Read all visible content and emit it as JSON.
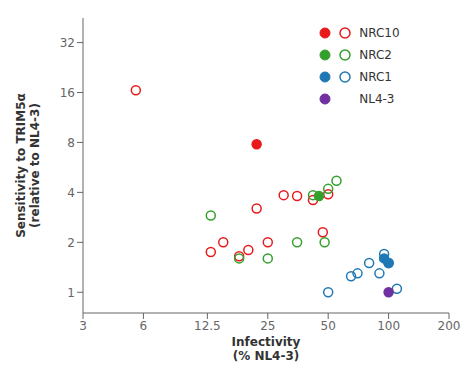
{
  "chart_data": {
    "type": "scatter",
    "xlabel": "Infectivity\n(% NL4-3)",
    "ylabel": "Sensitivity to TRIM5α\n(relative to NL4-3)",
    "log": true,
    "xlim": [
      3,
      200
    ],
    "ylim": [
      0.75,
      45
    ],
    "xticks": [
      3,
      6,
      12.5,
      25,
      50,
      100,
      200
    ],
    "yticks": [
      1,
      2,
      4,
      8,
      16,
      32
    ],
    "grid": false,
    "legend": "upper right",
    "series": [
      {
        "name": "NRC10",
        "color": "#e8191a",
        "marker": "open",
        "x": [
          5.5,
          13,
          15,
          18,
          20,
          22,
          25,
          30,
          35,
          42,
          47,
          50
        ],
        "values": [
          16.5,
          1.75,
          2.0,
          1.65,
          1.8,
          3.2,
          2.0,
          3.85,
          3.8,
          3.6,
          2.3,
          3.9
        ]
      },
      {
        "name": "NRC10",
        "color": "#e8191a",
        "marker": "circle",
        "x": [
          22
        ],
        "values": [
          7.8
        ]
      },
      {
        "name": "NRC2",
        "color": "#33a02c",
        "marker": "open",
        "x": [
          13,
          18,
          25,
          35,
          42,
          48
        ],
        "values": [
          2.9,
          1.6,
          1.6,
          2.0,
          3.85,
          2.0
        ]
      },
      {
        "name": "NRC2",
        "color": "#33a02c",
        "marker": "circle",
        "x": [
          45
        ],
        "values": [
          3.8
        ]
      },
      {
        "name": "NRC2",
        "color": "#33a02c",
        "marker": "open",
        "x": [
          50,
          55
        ],
        "values": [
          4.2,
          4.7
        ]
      },
      {
        "name": "NRC1",
        "color": "#1f78b4",
        "marker": "open",
        "x": [
          50,
          65,
          70,
          80,
          90,
          95,
          100,
          110
        ],
        "values": [
          1.0,
          1.25,
          1.3,
          1.5,
          1.3,
          1.7,
          1.5,
          1.05
        ]
      },
      {
        "name": "NRC1",
        "color": "#1f78b4",
        "marker": "circle",
        "x": [
          95,
          100
        ],
        "values": [
          1.6,
          1.5
        ]
      },
      {
        "name": "NL4-3",
        "color": "#7030a0",
        "marker": "circle",
        "x": [
          100
        ],
        "values": [
          1.0
        ]
      }
    ]
  }
}
